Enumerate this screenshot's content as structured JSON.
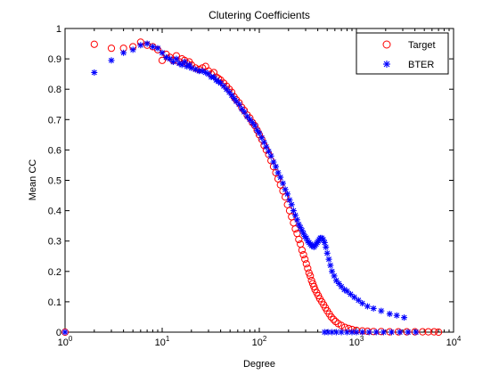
{
  "chart_data": {
    "type": "scatter",
    "title": "Clutering Coefficients",
    "xlabel": "Degree",
    "ylabel": "Mean CC",
    "xscale": "log",
    "xlim": [
      1,
      10000
    ],
    "ylim": [
      0,
      1
    ],
    "grid": false,
    "legend_position": "top-right",
    "x_ticks": [
      1,
      10,
      100,
      1000,
      10000
    ],
    "x_tick_labels": [
      {
        "base": "10",
        "exp": "0"
      },
      {
        "base": "10",
        "exp": "1"
      },
      {
        "base": "10",
        "exp": "2"
      },
      {
        "base": "10",
        "exp": "3"
      },
      {
        "base": "10",
        "exp": "4"
      }
    ],
    "y_ticks": [
      0,
      0.1,
      0.2,
      0.3,
      0.4,
      0.5,
      0.6,
      0.7,
      0.8,
      0.9,
      1
    ],
    "y_tick_labels": [
      "0",
      "0.1",
      "0.2",
      "0.3",
      "0.4",
      "0.5",
      "0.6",
      "0.7",
      "0.8",
      "0.9",
      "1"
    ],
    "series": [
      {
        "name": "Target",
        "marker": "circle",
        "color": "#ff0000",
        "points": [
          [
            1,
            0
          ],
          [
            2,
            0.948
          ],
          [
            3,
            0.935
          ],
          [
            4,
            0.935
          ],
          [
            5,
            0.94
          ],
          [
            6,
            0.955
          ],
          [
            7,
            0.945
          ],
          [
            8,
            0.94
          ],
          [
            9,
            0.93
          ],
          [
            10,
            0.895
          ],
          [
            11,
            0.915
          ],
          [
            12,
            0.905
          ],
          [
            13,
            0.895
          ],
          [
            14,
            0.91
          ],
          [
            15,
            0.89
          ],
          [
            16,
            0.9
          ],
          [
            17,
            0.895
          ],
          [
            18,
            0.885
          ],
          [
            19,
            0.89
          ],
          [
            20,
            0.88
          ],
          [
            22,
            0.87
          ],
          [
            24,
            0.865
          ],
          [
            26,
            0.87
          ],
          [
            28,
            0.875
          ],
          [
            30,
            0.86
          ],
          [
            32,
            0.85
          ],
          [
            34,
            0.855
          ],
          [
            36,
            0.84
          ],
          [
            38,
            0.835
          ],
          [
            40,
            0.83
          ],
          [
            43,
            0.82
          ],
          [
            46,
            0.81
          ],
          [
            49,
            0.8
          ],
          [
            52,
            0.79
          ],
          [
            55,
            0.775
          ],
          [
            58,
            0.765
          ],
          [
            62,
            0.755
          ],
          [
            66,
            0.74
          ],
          [
            70,
            0.73
          ],
          [
            75,
            0.715
          ],
          [
            80,
            0.705
          ],
          [
            85,
            0.69
          ],
          [
            90,
            0.68
          ],
          [
            95,
            0.665
          ],
          [
            100,
            0.65
          ],
          [
            106,
            0.635
          ],
          [
            112,
            0.615
          ],
          [
            118,
            0.6
          ],
          [
            125,
            0.585
          ],
          [
            132,
            0.565
          ],
          [
            140,
            0.545
          ],
          [
            148,
            0.525
          ],
          [
            156,
            0.505
          ],
          [
            165,
            0.485
          ],
          [
            175,
            0.465
          ],
          [
            185,
            0.445
          ],
          [
            195,
            0.42
          ],
          [
            205,
            0.4
          ],
          [
            215,
            0.38
          ],
          [
            225,
            0.36
          ],
          [
            235,
            0.34
          ],
          [
            245,
            0.325
          ],
          [
            255,
            0.305
          ],
          [
            265,
            0.29
          ],
          [
            275,
            0.27
          ],
          [
            285,
            0.255
          ],
          [
            295,
            0.24
          ],
          [
            305,
            0.225
          ],
          [
            315,
            0.21
          ],
          [
            325,
            0.195
          ],
          [
            335,
            0.185
          ],
          [
            345,
            0.17
          ],
          [
            355,
            0.16
          ],
          [
            365,
            0.15
          ],
          [
            375,
            0.14
          ],
          [
            390,
            0.13
          ],
          [
            405,
            0.12
          ],
          [
            420,
            0.11
          ],
          [
            440,
            0.1
          ],
          [
            460,
            0.09
          ],
          [
            480,
            0.08
          ],
          [
            500,
            0.07
          ],
          [
            525,
            0.06
          ],
          [
            550,
            0.05
          ],
          [
            580,
            0.042
          ],
          [
            610,
            0.035
          ],
          [
            650,
            0.028
          ],
          [
            700,
            0.022
          ],
          [
            760,
            0.016
          ],
          [
            830,
            0.012
          ],
          [
            900,
            0.009
          ],
          [
            1000,
            0.006
          ],
          [
            1150,
            0.004
          ],
          [
            1300,
            0.003
          ],
          [
            1500,
            0.002
          ],
          [
            1800,
            0.002
          ],
          [
            2200,
            0.001
          ],
          [
            2700,
            0.001
          ],
          [
            3300,
            0.001
          ],
          [
            4000,
            0.001
          ],
          [
            4800,
            0.001
          ],
          [
            5500,
            0.001
          ],
          [
            6300,
            0.001
          ],
          [
            7000,
            0.0
          ]
        ]
      },
      {
        "name": "BTER",
        "marker": "star",
        "color": "#0000ff",
        "points": [
          [
            1,
            0
          ],
          [
            2,
            0.855
          ],
          [
            3,
            0.895
          ],
          [
            4,
            0.92
          ],
          [
            5,
            0.93
          ],
          [
            6,
            0.945
          ],
          [
            7,
            0.95
          ],
          [
            8,
            0.94
          ],
          [
            9,
            0.935
          ],
          [
            10,
            0.92
          ],
          [
            11,
            0.905
          ],
          [
            12,
            0.9
          ],
          [
            13,
            0.89
          ],
          [
            14,
            0.9
          ],
          [
            15,
            0.885
          ],
          [
            16,
            0.88
          ],
          [
            17,
            0.89
          ],
          [
            18,
            0.875
          ],
          [
            19,
            0.88
          ],
          [
            20,
            0.87
          ],
          [
            22,
            0.865
          ],
          [
            24,
            0.86
          ],
          [
            26,
            0.86
          ],
          [
            28,
            0.855
          ],
          [
            30,
            0.85
          ],
          [
            32,
            0.84
          ],
          [
            34,
            0.84
          ],
          [
            36,
            0.83
          ],
          [
            38,
            0.825
          ],
          [
            40,
            0.82
          ],
          [
            43,
            0.81
          ],
          [
            46,
            0.8
          ],
          [
            49,
            0.79
          ],
          [
            52,
            0.78
          ],
          [
            55,
            0.77
          ],
          [
            58,
            0.76
          ],
          [
            62,
            0.75
          ],
          [
            66,
            0.735
          ],
          [
            70,
            0.725
          ],
          [
            75,
            0.71
          ],
          [
            80,
            0.7
          ],
          [
            85,
            0.69
          ],
          [
            90,
            0.68
          ],
          [
            95,
            0.665
          ],
          [
            100,
            0.655
          ],
          [
            106,
            0.64
          ],
          [
            112,
            0.625
          ],
          [
            118,
            0.61
          ],
          [
            125,
            0.595
          ],
          [
            132,
            0.58
          ],
          [
            140,
            0.56
          ],
          [
            148,
            0.545
          ],
          [
            156,
            0.525
          ],
          [
            165,
            0.51
          ],
          [
            175,
            0.49
          ],
          [
            185,
            0.47
          ],
          [
            195,
            0.455
          ],
          [
            205,
            0.435
          ],
          [
            215,
            0.42
          ],
          [
            225,
            0.4
          ],
          [
            235,
            0.385
          ],
          [
            245,
            0.37
          ],
          [
            255,
            0.355
          ],
          [
            265,
            0.345
          ],
          [
            275,
            0.335
          ],
          [
            285,
            0.325
          ],
          [
            295,
            0.315
          ],
          [
            305,
            0.31
          ],
          [
            315,
            0.3
          ],
          [
            325,
            0.295
          ],
          [
            335,
            0.29
          ],
          [
            345,
            0.285
          ],
          [
            355,
            0.285
          ],
          [
            365,
            0.28
          ],
          [
            375,
            0.285
          ],
          [
            385,
            0.29
          ],
          [
            395,
            0.295
          ],
          [
            405,
            0.3
          ],
          [
            415,
            0.305
          ],
          [
            425,
            0.31
          ],
          [
            440,
            0.31
          ],
          [
            455,
            0.305
          ],
          [
            470,
            0.295
          ],
          [
            485,
            0.28
          ],
          [
            500,
            0.26
          ],
          [
            520,
            0.24
          ],
          [
            540,
            0.22
          ],
          [
            560,
            0.2
          ],
          [
            590,
            0.185
          ],
          [
            620,
            0.17
          ],
          [
            660,
            0.16
          ],
          [
            700,
            0.15
          ],
          [
            750,
            0.14
          ],
          [
            800,
            0.135
          ],
          [
            870,
            0.125
          ],
          [
            950,
            0.115
          ],
          [
            1050,
            0.105
          ],
          [
            1150,
            0.095
          ],
          [
            1300,
            0.085
          ],
          [
            1500,
            0.078
          ],
          [
            1800,
            0.07
          ],
          [
            2200,
            0.06
          ],
          [
            2600,
            0.055
          ],
          [
            3100,
            0.048
          ],
          [
            470,
            0.0
          ],
          [
            510,
            0.0
          ],
          [
            560,
            0.0
          ],
          [
            620,
            0.0
          ],
          [
            700,
            0.0
          ],
          [
            800,
            0.0
          ],
          [
            900,
            0.0
          ],
          [
            1000,
            0.0
          ],
          [
            1150,
            0.0
          ],
          [
            1350,
            0.0
          ],
          [
            1600,
            0.0
          ],
          [
            1900,
            0.0
          ],
          [
            2300,
            0.0
          ],
          [
            2800,
            0.0
          ],
          [
            3400,
            0.0
          ],
          [
            4100,
            0.0
          ]
        ]
      }
    ]
  }
}
